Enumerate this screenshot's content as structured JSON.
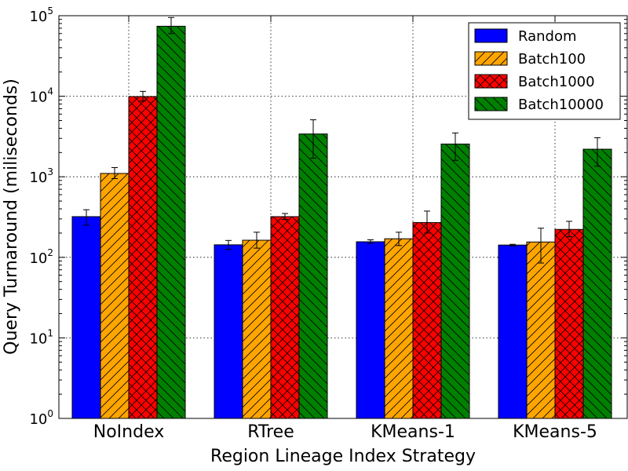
{
  "chart_data": {
    "type": "bar",
    "title": "",
    "xlabel": "Region Lineage Index Strategy",
    "ylabel": "Query Turnaround (miliseconds)",
    "yscale": "log",
    "ylim": [
      1,
      100000
    ],
    "yticks": [
      {
        "value": 1,
        "base": "10",
        "exp": "0"
      },
      {
        "value": 10,
        "base": "10",
        "exp": "1"
      },
      {
        "value": 100,
        "base": "10",
        "exp": "2"
      },
      {
        "value": 1000,
        "base": "10",
        "exp": "3"
      },
      {
        "value": 10000,
        "base": "10",
        "exp": "4"
      },
      {
        "value": 100000,
        "base": "10",
        "exp": "5"
      }
    ],
    "grid": true,
    "legend_position": "top-right",
    "categories": [
      "NoIndex",
      "RTree",
      "KMeans-1",
      "KMeans-5"
    ],
    "series": [
      {
        "name": "Random",
        "color": "#0000ff",
        "hatch": "none",
        "values": [
          320,
          143,
          156,
          142
        ],
        "err_low": [
          250,
          125,
          149,
          139
        ],
        "err_high": [
          390,
          162,
          165,
          145
        ]
      },
      {
        "name": "Batch100",
        "color": "#ffa500",
        "hatch": "forward-diagonal",
        "values": [
          1100,
          163,
          170,
          155
        ],
        "err_low": [
          950,
          130,
          140,
          85
        ],
        "err_high": [
          1300,
          205,
          205,
          230
        ]
      },
      {
        "name": "Batch1000",
        "color": "#ff0000",
        "hatch": "cross",
        "values": [
          9900,
          320,
          270,
          222
        ],
        "err_low": [
          8700,
          295,
          200,
          180
        ],
        "err_high": [
          11500,
          350,
          375,
          280
        ]
      },
      {
        "name": "Batch10000",
        "color": "#008000",
        "hatch": "back-diagonal",
        "values": [
          74000,
          3400,
          2550,
          2200
        ],
        "err_low": [
          60000,
          1700,
          1600,
          1350
        ],
        "err_high": [
          95000,
          5100,
          3500,
          3050
        ]
      }
    ]
  }
}
